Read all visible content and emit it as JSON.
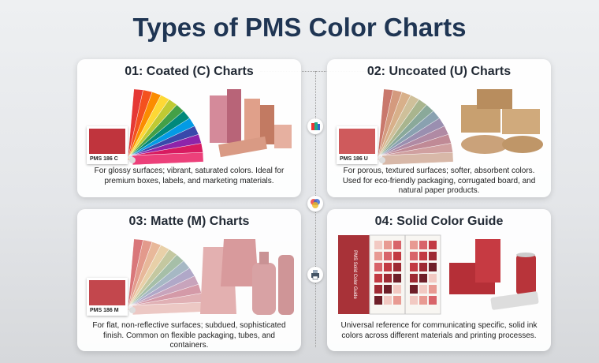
{
  "title": "Types of PMS Color Charts",
  "cards": [
    {
      "heading": "01: Coated (C) Charts",
      "swatch_label": "PMS 186 C",
      "description": "For glossy surfaces; vibrant, saturated colors. Ideal for premium boxes, labels, and marketing materials."
    },
    {
      "heading": "02: Uncoated (U) Charts",
      "swatch_label": "PMS 186 U",
      "description": "For porous, textured surfaces; softer, absorbent colors. Used for eco-friendly packaging, corrugated board, and natural paper products."
    },
    {
      "heading": "03: Matte (M) Charts",
      "swatch_label": "PMS 186 M",
      "description": "For flat, non-reflective surfaces; subdued, sophisticated finish. Common on flexible packaging, tubes, and containers."
    },
    {
      "heading": "04: Solid Color Guide",
      "swatch_label": null,
      "description": "Universal reference for communicating specific, solid ink colors across different materials and printing processes."
    }
  ],
  "book_title": "PMS Solid Color Guide"
}
